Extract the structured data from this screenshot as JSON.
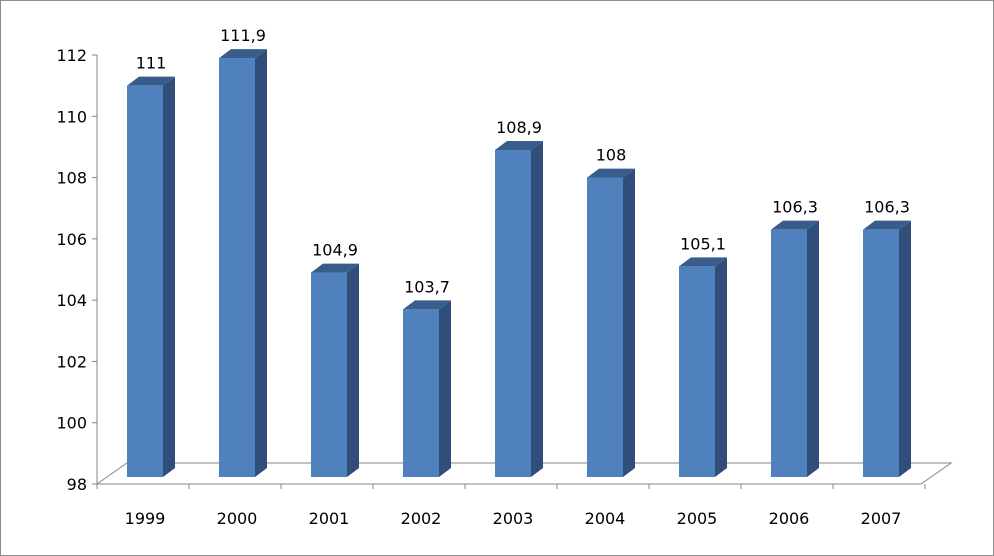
{
  "chart_data": {
    "type": "bar",
    "categories": [
      "1999",
      "2000",
      "2001",
      "2002",
      "2003",
      "2004",
      "2005",
      "2006",
      "2007"
    ],
    "values": [
      111,
      111.9,
      104.9,
      103.7,
      108.9,
      108,
      105.1,
      106.3,
      106.3
    ],
    "data_labels": [
      "111",
      "111,9",
      "104,9",
      "103,7",
      "108,9",
      "108",
      "105,1",
      "106,3",
      "106,3"
    ],
    "yticks": [
      "98",
      "100",
      "102",
      "104",
      "106",
      "108",
      "110",
      "112"
    ],
    "ylim": [
      98,
      112
    ],
    "title": "",
    "xlabel": "",
    "ylabel": "",
    "grid": false,
    "legend": "none",
    "style": "3d-column",
    "colors": {
      "bar_front": "#4f81bd",
      "bar_side": "#2f4f7a",
      "bar_top": "#385d8a",
      "axis": "#868686"
    }
  }
}
